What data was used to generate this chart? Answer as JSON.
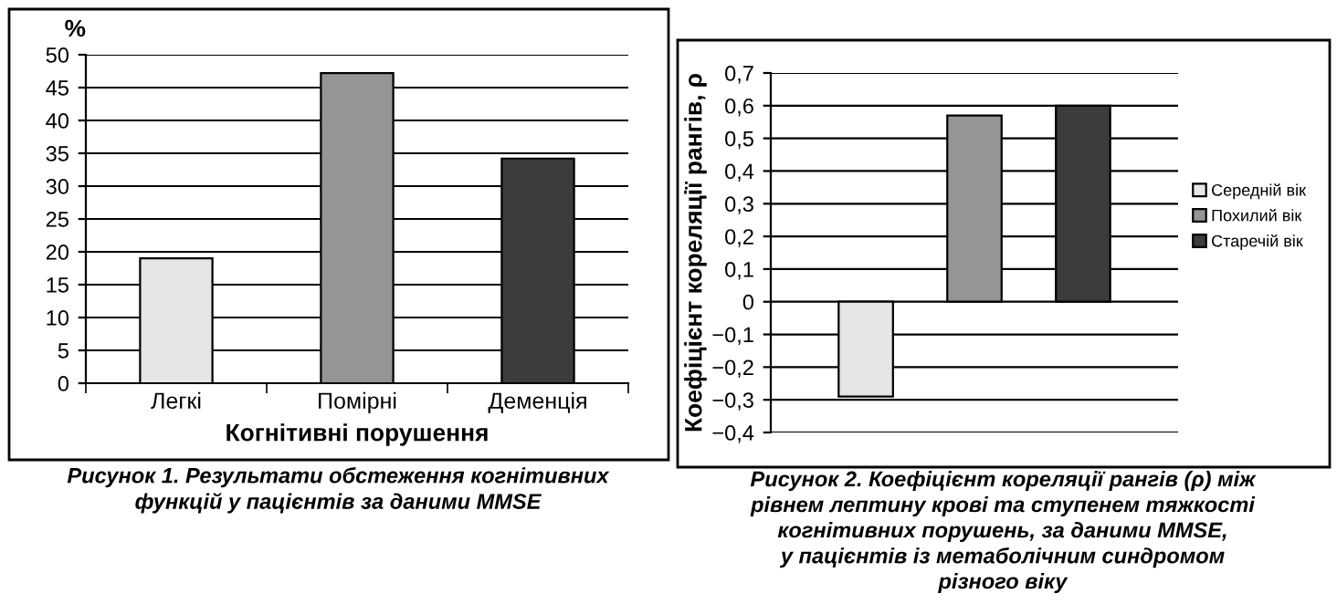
{
  "chart_data": [
    {
      "type": "bar",
      "ylabel": "%",
      "xlabel": "Когнітивні порушення",
      "categories": [
        "Легкі",
        "Помірні",
        "Деменція"
      ],
      "values": [
        19,
        47.2,
        34.2
      ],
      "colors": [
        "#e6e6e6",
        "#959595",
        "#3c3c3c"
      ],
      "ylim": [
        0,
        50
      ],
      "yticks": [
        0,
        5,
        10,
        15,
        20,
        25,
        30,
        35,
        40,
        45,
        50
      ],
      "grid": "y",
      "legend": false,
      "annotations": [
        "Рисунок 1. Результати обстеження когнітивних",
        "функцій у пацієнтів за даними MMSE"
      ]
    },
    {
      "type": "bar",
      "ylabel": "Коефіцієнт кореляції рангів, ρ",
      "categories": [
        null
      ],
      "series": [
        {
          "name": "Середній вік",
          "color": "#e6e6e6",
          "values": [
            -0.29
          ]
        },
        {
          "name": "Похилий вік",
          "color": "#959595",
          "values": [
            0.57
          ]
        },
        {
          "name": "Старечій вік",
          "color": "#3c3c3c",
          "values": [
            0.6
          ]
        }
      ],
      "ylim": [
        -0.4,
        0.7
      ],
      "yticks": [
        {
          "value": -0.4,
          "label": "−0,4"
        },
        {
          "value": -0.3,
          "label": "−0,3"
        },
        {
          "value": -0.2,
          "label": "−0,2"
        },
        {
          "value": -0.1,
          "label": "−0,1"
        },
        0,
        {
          "value": 0.1,
          "label": "0,1"
        },
        {
          "value": 0.2,
          "label": "0,2"
        },
        {
          "value": 0.3,
          "label": "0,3"
        },
        {
          "value": 0.4,
          "label": "0,4"
        },
        {
          "value": 0.5,
          "label": "0,5"
        },
        {
          "value": 0.6,
          "label": "0,6"
        },
        {
          "value": 0.7,
          "label": "0,7"
        }
      ],
      "grid": "y",
      "legend": "right",
      "annotations": [
        "Рисунок 2. Коефіцієнт кореляції рангів (ρ) між",
        "рівнем лептину крові та ступенем тяжкості",
        "когнітивних порушень, за даними MMSE,",
        "у пацієнтів із метаболічним синдромом",
        "різного віку"
      ]
    }
  ]
}
